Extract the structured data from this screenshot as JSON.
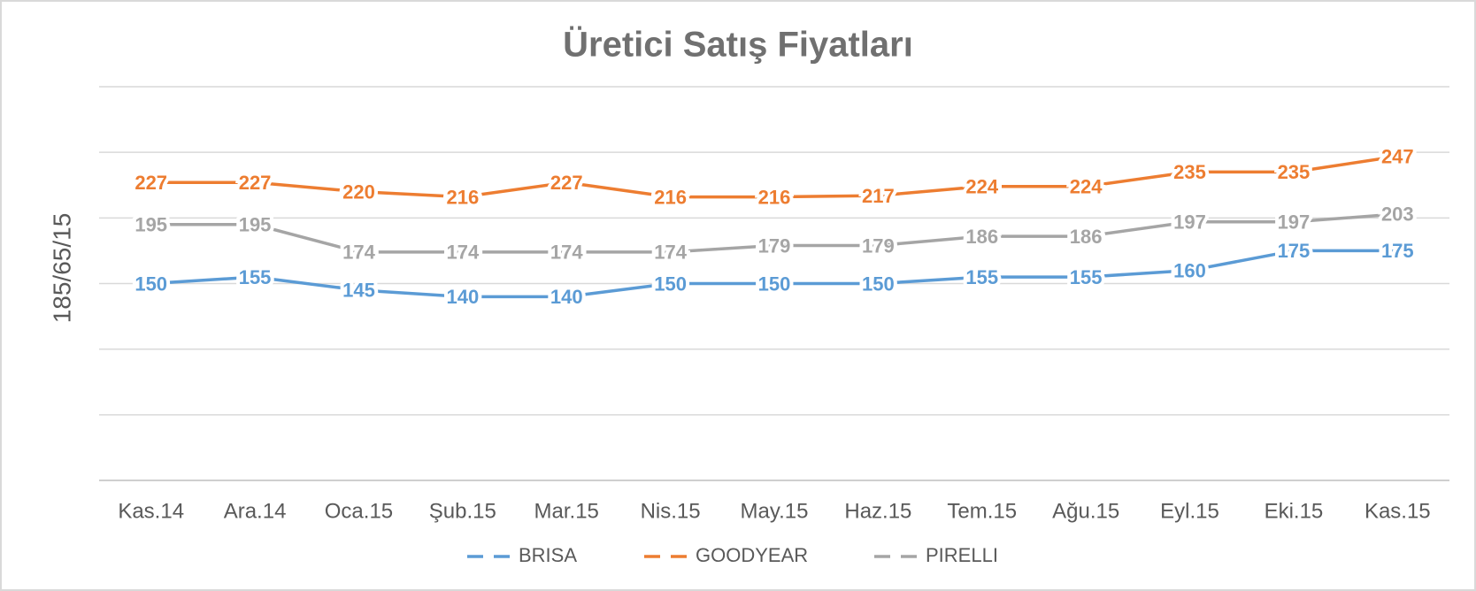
{
  "chart_data": {
    "type": "line",
    "title": "Üretici Satış Fiyatları",
    "ylabel": "185/65/15",
    "categories": [
      "Kas.14",
      "Ara.14",
      "Oca.15",
      "Şub.15",
      "Mar.15",
      "Nis.15",
      "May.15",
      "Haz.15",
      "Tem.15",
      "Ağu.15",
      "Eyl.15",
      "Eki.15",
      "Kas.15"
    ],
    "series": [
      {
        "name": "BRISA",
        "color": "#5b9bd5",
        "values": [
          150,
          155,
          145,
          140,
          140,
          150,
          150,
          150,
          155,
          155,
          160,
          175,
          175
        ]
      },
      {
        "name": "GOODYEAR",
        "color": "#ed7d31",
        "values": [
          227,
          227,
          220,
          216,
          227,
          216,
          216,
          217,
          224,
          224,
          235,
          235,
          247
        ]
      },
      {
        "name": "PIRELLI",
        "color": "#a5a5a5",
        "values": [
          195,
          195,
          174,
          174,
          174,
          174,
          179,
          179,
          186,
          186,
          197,
          197,
          203
        ]
      }
    ],
    "ylim": [
      0,
      300
    ],
    "yticks": [
      0,
      50,
      100,
      150,
      200,
      250,
      300
    ],
    "grid": true,
    "legend": "bottom"
  }
}
